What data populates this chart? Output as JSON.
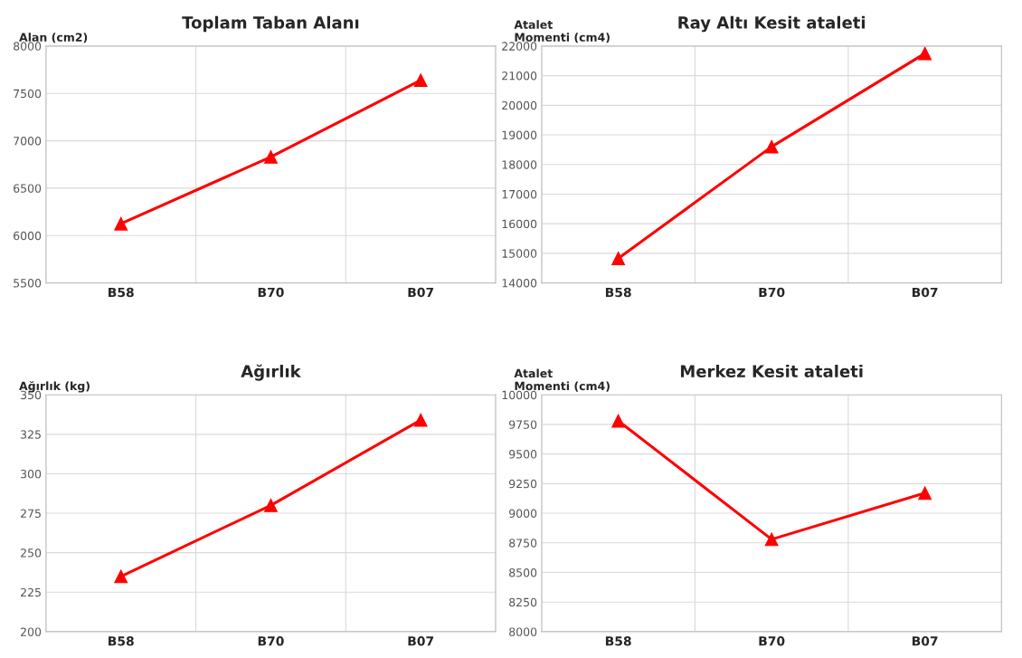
{
  "chart_data": [
    {
      "type": "line",
      "title": "Toplam Taban Alanı",
      "ylabel": "Alan (cm2)",
      "categories": [
        "B58",
        "B70",
        "B07"
      ],
      "series": [
        {
          "color": "#ff0000",
          "values": [
            6125,
            6830,
            7640
          ]
        }
      ],
      "ylim": [
        5500,
        8000
      ],
      "yticks": [
        5500,
        6000,
        6500,
        7000,
        7500,
        8000
      ],
      "grid": true,
      "marker": "triangle",
      "line_style": "solid"
    },
    {
      "type": "line",
      "title": "Ray Altı Kesit ataleti",
      "ylabel": "Atalet\nMomenti (cm4)",
      "categories": [
        "B58",
        "B70",
        "B07"
      ],
      "series": [
        {
          "color": "#ff0000",
          "values": [
            14830,
            18600,
            21750
          ]
        }
      ],
      "ylim": [
        14000,
        22000
      ],
      "yticks": [
        14000,
        15000,
        16000,
        17000,
        18000,
        19000,
        20000,
        21000,
        22000
      ],
      "grid": true,
      "marker": "triangle",
      "line_style": "solid"
    },
    {
      "type": "line",
      "title": "Ağırlık",
      "ylabel": "Ağırlık (kg)",
      "categories": [
        "B58",
        "B70",
        "B07"
      ],
      "series": [
        {
          "color": "#ff0000",
          "values": [
            235,
            280,
            334
          ]
        }
      ],
      "ylim": [
        200,
        350
      ],
      "yticks": [
        200,
        225,
        250,
        275,
        300,
        325,
        350
      ],
      "grid": true,
      "marker": "triangle",
      "line_style": "solid"
    },
    {
      "type": "line",
      "title": "Merkez Kesit ataleti",
      "ylabel": "Atalet\nMomenti (cm4)",
      "categories": [
        "B58",
        "B70",
        "B07"
      ],
      "series": [
        {
          "color": "#ff0000",
          "values": [
            9780,
            8780,
            9170
          ]
        }
      ],
      "ylim": [
        8000,
        10000
      ],
      "yticks": [
        8000,
        8250,
        8500,
        8750,
        9000,
        9250,
        9500,
        9750,
        10000
      ],
      "grid": true,
      "marker": "triangle",
      "line_style": "solid"
    }
  ]
}
